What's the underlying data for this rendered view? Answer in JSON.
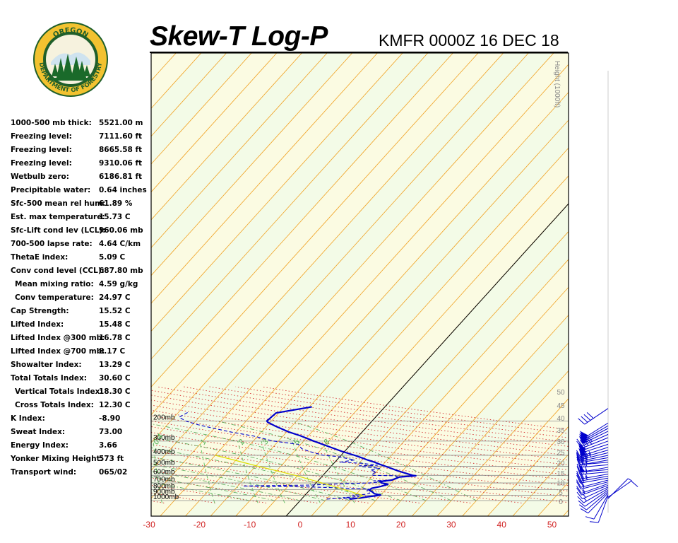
{
  "header": {
    "title": "Skew-T Log-P",
    "station": "KMFR 0000Z 16 DEC 18"
  },
  "logo": {
    "top_text": "OREGON",
    "bottom_text": "DEPARTMENT OF FORESTRY",
    "colors": {
      "ring": "#1f5f2a",
      "gold": "#f2c230",
      "tree": "#1a6a2a"
    }
  },
  "indices": [
    {
      "label": "1000-500 mb thick:",
      "value": "5521.00 m"
    },
    {
      "label": "Freezing level:",
      "value": "7111.60 ft"
    },
    {
      "label": "Freezing level:",
      "value": "8665.58 ft"
    },
    {
      "label": "Freezing level:",
      "value": "9310.06 ft"
    },
    {
      "label": "Wetbulb zero:",
      "value": "6186.81 ft"
    },
    {
      "label": "Precipitable water:",
      "value": "0.64 inches"
    },
    {
      "label": "Sfc-500 mean rel hum:",
      "value": "61.89 %"
    },
    {
      "label": "Est. max temperature:",
      "value": "15.73 C"
    },
    {
      "label": "Sfc-Lift cond lev (LCL):",
      "value": "960.06 mb"
    },
    {
      "label": "700-500 lapse rate:",
      "value": "4.64 C/km"
    },
    {
      "label": "ThetaE index:",
      "value": "5.09 C"
    },
    {
      "label": "Conv cond level (CCL):",
      "value": "687.80 mb"
    },
    {
      "label": "Mean mixing ratio:",
      "value": "4.59 g/kg",
      "indent": true
    },
    {
      "label": "Conv temperature:",
      "value": "24.97 C",
      "indent": true
    },
    {
      "label": "Cap Strength:",
      "value": "15.52 C"
    },
    {
      "label": "Lifted Index:",
      "value": "15.48 C"
    },
    {
      "label": "Lifted Index @300 mb:",
      "value": "16.78 C"
    },
    {
      "label": "Lifted Index @700 mb:",
      "value": "8.17 C"
    },
    {
      "label": "Showalter Index:",
      "value": "13.29 C"
    },
    {
      "label": "Total Totals Index:",
      "value": "30.60 C"
    },
    {
      "label": "Vertical Totals Index:",
      "value": "18.30 C",
      "indent": true
    },
    {
      "label": "Cross Totals Index:",
      "value": "12.30 C",
      "indent": true
    },
    {
      "label": "K Index:",
      "value": "-8.90"
    },
    {
      "label": "Sweat Index:",
      "value": "73.00"
    },
    {
      "label": "Energy Index:",
      "value": "3.66"
    },
    {
      "label": "Yonker Mixing Height:",
      "value": "573 ft"
    },
    {
      "label": "Transport wind:",
      "value": "065/02"
    }
  ],
  "chart_data": {
    "type": "line",
    "chart_kind": "skew-t log-p",
    "title": "Skew-T Log-P",
    "subtitle": "KMFR 0000Z 16 DEC 18",
    "x_tick_labels": [
      "-30",
      "-20",
      "-10",
      "0",
      "10",
      "20",
      "30",
      "40",
      "50"
    ],
    "x_ticks": [
      -30,
      -20,
      -10,
      0,
      10,
      20,
      30,
      40,
      50
    ],
    "pressure_levels": [
      1000,
      900,
      800,
      700,
      600,
      500,
      400,
      300,
      200
    ],
    "pressure_labels": [
      "1000mb",
      "900mb",
      "800mb",
      "700mb",
      "600mb",
      "500mb",
      "400mb",
      "300mb",
      "200mb"
    ],
    "height_axis_title": "Height (1000ft)",
    "height_tick_labels": [
      "0",
      "5",
      "10",
      "15",
      "20",
      "25",
      "30",
      "35",
      "40",
      "45",
      "50"
    ],
    "height_ticks_kft": [
      0,
      5,
      10,
      15,
      20,
      25,
      30,
      35,
      40,
      45,
      50
    ],
    "mixing_ratio_labels": [
      "0.4",
      "1",
      "2",
      "3",
      "5",
      "8"
    ],
    "mixing_ratio_values": [
      0.4,
      1,
      2,
      3,
      5,
      8
    ],
    "series": [
      {
        "role": "temperature",
        "color": "#0000cc",
        "style": "solid",
        "points": [
          [
            970,
            9.5
          ],
          [
            950,
            11.5
          ],
          [
            930,
            12.5
          ],
          [
            910,
            14.0
          ],
          [
            895,
            15.0
          ],
          [
            870,
            13.5
          ],
          [
            840,
            12.8
          ],
          [
            810,
            11.8
          ],
          [
            780,
            12.0
          ],
          [
            750,
            13.5
          ],
          [
            720,
            14.5
          ],
          [
            700,
            13.0
          ],
          [
            680,
            12.5
          ],
          [
            660,
            14.5
          ],
          [
            640,
            15.0
          ],
          [
            620,
            15.5
          ],
          [
            605,
            18.5
          ],
          [
            600,
            17.8
          ],
          [
            550,
            14.2
          ],
          [
            500,
            10.8
          ],
          [
            480,
            9.3
          ],
          [
            460,
            7.9
          ],
          [
            440,
            6.1
          ],
          [
            420,
            4.5
          ],
          [
            400,
            2.7
          ],
          [
            370,
            -0.5
          ],
          [
            340,
            -3.5
          ],
          [
            300,
            -8.0
          ],
          [
            270,
            -11.5
          ],
          [
            250,
            -14.5
          ],
          [
            220,
            -18.5
          ],
          [
            205,
            -20.5
          ],
          [
            200,
            -20.9
          ],
          [
            170,
            -20.5
          ],
          [
            150,
            -14.5
          ]
        ]
      },
      {
        "role": "dewpoint",
        "color": "#0000cc",
        "style": "dashed",
        "points": [
          [
            970,
            5.0
          ],
          [
            960,
            6.5
          ],
          [
            950,
            9.5
          ],
          [
            940,
            8.0
          ],
          [
            925,
            11.0
          ],
          [
            900,
            9.5
          ],
          [
            880,
            12.0
          ],
          [
            860,
            12.5
          ],
          [
            820,
            11.5
          ],
          [
            790,
            11.5
          ],
          [
            760,
            0.0
          ],
          [
            745,
            -14.0
          ],
          [
            738,
            -8.0
          ],
          [
            730,
            -0.5
          ],
          [
            715,
            3.5
          ],
          [
            700,
            10.5
          ],
          [
            680,
            13.5
          ],
          [
            670,
            11.0
          ],
          [
            660,
            15.0
          ],
          [
            650,
            15.0
          ],
          [
            630,
            15.5
          ],
          [
            605,
            14.5
          ],
          [
            600,
            10.0
          ],
          [
            590,
            9.5
          ],
          [
            560,
            10.0
          ],
          [
            540,
            8.5
          ],
          [
            520,
            10.0
          ],
          [
            505,
            6.5
          ],
          [
            495,
            5.5
          ],
          [
            490,
            9.0
          ],
          [
            470,
            5.5
          ],
          [
            460,
            1.0
          ],
          [
            440,
            3.5
          ],
          [
            410,
            -0.5
          ],
          [
            400,
            -3.5
          ],
          [
            370,
            -7.0
          ],
          [
            350,
            -9.0
          ],
          [
            320,
            -10.5
          ],
          [
            300,
            -16.0
          ],
          [
            270,
            -21.0
          ],
          [
            250,
            -26.0
          ],
          [
            230,
            -30.5
          ],
          [
            215,
            -34.0
          ],
          [
            200,
            -37.0
          ],
          [
            185,
            -39.0
          ],
          [
            165,
            -38.0
          ]
        ]
      },
      {
        "role": "parcel",
        "color": "#dddd00",
        "style": "solid",
        "points": [
          [
            960,
            11.0
          ],
          [
            900,
            11.5
          ],
          [
            800,
            6.8
          ],
          [
            700,
            1.2
          ],
          [
            600,
            -5.5
          ],
          [
            500,
            -14.5
          ],
          [
            430,
            -21.5
          ],
          [
            400,
            -25.0
          ]
        ]
      }
    ],
    "wind_barbs": [
      {
        "p": 960,
        "dir": 45,
        "kt": 5
      },
      {
        "p": 935,
        "dir": 55,
        "kt": 10
      },
      {
        "p": 910,
        "dir": 200,
        "kt": 10
      },
      {
        "p": 885,
        "dir": 210,
        "kt": 10
      },
      {
        "p": 860,
        "dir": 225,
        "kt": 10
      },
      {
        "p": 835,
        "dir": 230,
        "kt": 10
      },
      {
        "p": 810,
        "dir": 235,
        "kt": 10
      },
      {
        "p": 785,
        "dir": 240,
        "kt": 15
      },
      {
        "p": 760,
        "dir": 245,
        "kt": 15
      },
      {
        "p": 735,
        "dir": 250,
        "kt": 15
      },
      {
        "p": 710,
        "dir": 250,
        "kt": 15
      },
      {
        "p": 685,
        "dir": 255,
        "kt": 20
      },
      {
        "p": 660,
        "dir": 255,
        "kt": 20
      },
      {
        "p": 635,
        "dir": 260,
        "kt": 20
      },
      {
        "p": 610,
        "dir": 260,
        "kt": 25
      },
      {
        "p": 585,
        "dir": 260,
        "kt": 25
      },
      {
        "p": 560,
        "dir": 265,
        "kt": 25
      },
      {
        "p": 535,
        "dir": 265,
        "kt": 30
      },
      {
        "p": 510,
        "dir": 260,
        "kt": 50
      },
      {
        "p": 485,
        "dir": 265,
        "kt": 25
      },
      {
        "p": 460,
        "dir": 265,
        "kt": 25
      },
      {
        "p": 440,
        "dir": 260,
        "kt": 25
      },
      {
        "p": 420,
        "dir": 260,
        "kt": 30
      },
      {
        "p": 400,
        "dir": 258,
        "kt": 30
      },
      {
        "p": 380,
        "dir": 256,
        "kt": 35
      },
      {
        "p": 360,
        "dir": 254,
        "kt": 35
      },
      {
        "p": 340,
        "dir": 252,
        "kt": 50
      },
      {
        "p": 320,
        "dir": 252,
        "kt": 50
      },
      {
        "p": 300,
        "dir": 250,
        "kt": 50
      },
      {
        "p": 280,
        "dir": 248,
        "kt": 40
      },
      {
        "p": 262,
        "dir": 246,
        "kt": 40
      },
      {
        "p": 246,
        "dir": 244,
        "kt": 50
      },
      {
        "p": 232,
        "dir": 242,
        "kt": 50
      },
      {
        "p": 220,
        "dir": 240,
        "kt": 50
      },
      {
        "p": 208,
        "dir": 238,
        "kt": 50
      },
      {
        "p": 155,
        "dir": 236,
        "kt": 40
      }
    ]
  }
}
